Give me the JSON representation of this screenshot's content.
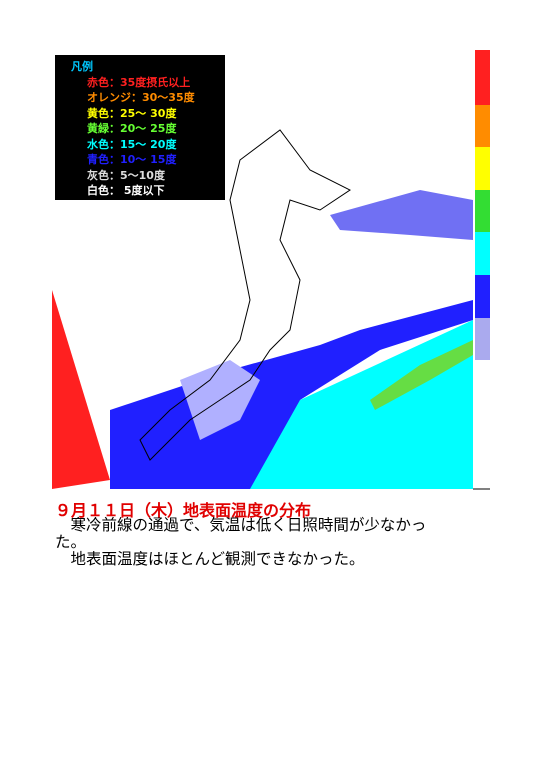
{
  "legend": {
    "title": "凡例",
    "items": [
      {
        "text": "赤色：35度摂氏以上",
        "color": "#ff2020"
      },
      {
        "text": "オレンジ：30～35度",
        "color": "#ff8c00"
      },
      {
        "text": "黄色：25～ 30度",
        "color": "#ffff00"
      },
      {
        "text": "黄緑：20～ 25度",
        "color": "#66ff33"
      },
      {
        "text": "水色：15～ 20度",
        "color": "#00ffff"
      },
      {
        "text": "青色：10～ 15度",
        "color": "#2020ff"
      },
      {
        "text": "灰色：5～10度",
        "color": "#dddddd"
      },
      {
        "text": "白色： 5度以下",
        "color": "#ffffff"
      }
    ]
  },
  "caption": {
    "title": "９月１１日（木）地表面温度の分布",
    "paragraphs": [
      "　寒冷前線の通過で、気温は低く日照時間が少なかった。",
      "　地表面温度はほとんど観測できなかった。"
    ]
  }
}
